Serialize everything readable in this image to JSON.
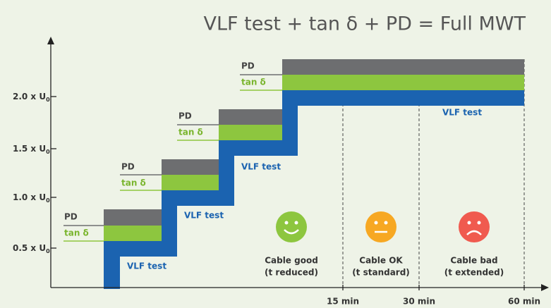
{
  "title": "VLF test + tan δ + PD = Full MWT",
  "y_axis": [
    {
      "text": "2.0 x U",
      "sub": "0"
    },
    {
      "text": "1.5 x U",
      "sub": "0"
    },
    {
      "text": "1.0 x U",
      "sub": "0"
    },
    {
      "text": "0.5 x U",
      "sub": "0"
    }
  ],
  "x_axis": [
    "15 min",
    "30 min",
    "60 min"
  ],
  "steps": [
    {
      "pd": "PD",
      "tan": "tan δ",
      "vlf": "VLF test"
    },
    {
      "pd": "PD",
      "tan": "tan δ",
      "vlf": "VLF test"
    },
    {
      "pd": "PD",
      "tan": "tan δ",
      "vlf": "VLF test"
    },
    {
      "pd": "PD",
      "tan": "tan δ",
      "vlf": "VLF test"
    }
  ],
  "outcomes": [
    {
      "line1": "Cable good",
      "line2": "(t reduced)"
    },
    {
      "line1": "Cable OK",
      "line2": "(t standard)"
    },
    {
      "line1": "Cable bad",
      "line2": "(t extended)"
    }
  ]
}
